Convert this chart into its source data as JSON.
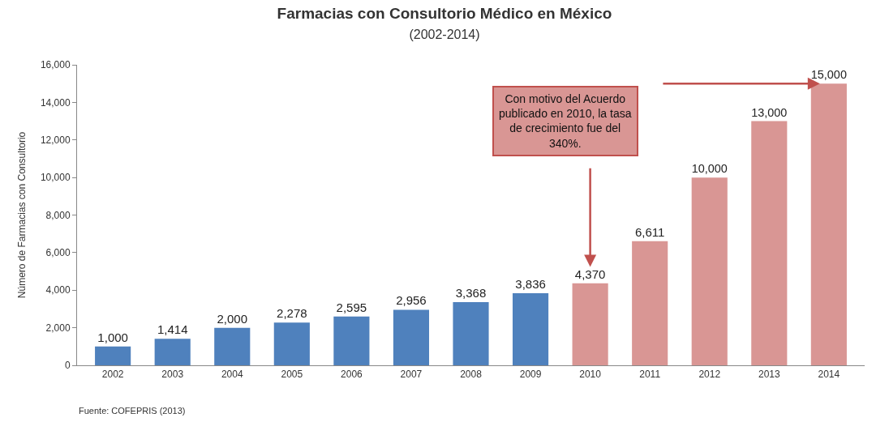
{
  "chart_data": {
    "type": "bar",
    "title": "Farmacias con Consultorio Médico en México",
    "subtitle": "(2002-2014)",
    "ylabel": "Número de Farmacias con Consultorio",
    "categories": [
      "2002",
      "2003",
      "2004",
      "2005",
      "2006",
      "2007",
      "2008",
      "2009",
      "2010",
      "2011",
      "2012",
      "2013",
      "2014"
    ],
    "values": [
      1000,
      1414,
      2000,
      2278,
      2595,
      2956,
      3368,
      3836,
      4370,
      6611,
      10000,
      13000,
      15000
    ],
    "colors": [
      "#4f81bd",
      "#4f81bd",
      "#4f81bd",
      "#4f81bd",
      "#4f81bd",
      "#4f81bd",
      "#4f81bd",
      "#4f81bd",
      "#d99694",
      "#d99694",
      "#d99694",
      "#d99694",
      "#d99694"
    ],
    "value_labels": [
      "1,000",
      "1,414",
      "2,000",
      "2,278",
      "2,595",
      "2,956",
      "3,368",
      "3,836",
      "4,370",
      "6,611",
      "10,000",
      "13,000",
      "15,000"
    ],
    "ylim": [
      0,
      16000
    ],
    "yticks": [
      {
        "value": 0,
        "label": "0"
      },
      {
        "value": 2000,
        "label": "2,000"
      },
      {
        "value": 4000,
        "label": "4,000"
      },
      {
        "value": 6000,
        "label": "6,000"
      },
      {
        "value": 8000,
        "label": "8,000"
      },
      {
        "value": 10000,
        "label": "10,000"
      },
      {
        "value": 12000,
        "label": "12,000"
      },
      {
        "value": 14000,
        "label": "14,000"
      },
      {
        "value": 16000,
        "label": "16,000"
      }
    ],
    "legend": false,
    "annotations": [
      "Con motivo del Acuerdo publicado en 2010, la tasa de crecimiento fue del 340%.",
      "Fuente: COFEPRIS (2013)"
    ]
  }
}
